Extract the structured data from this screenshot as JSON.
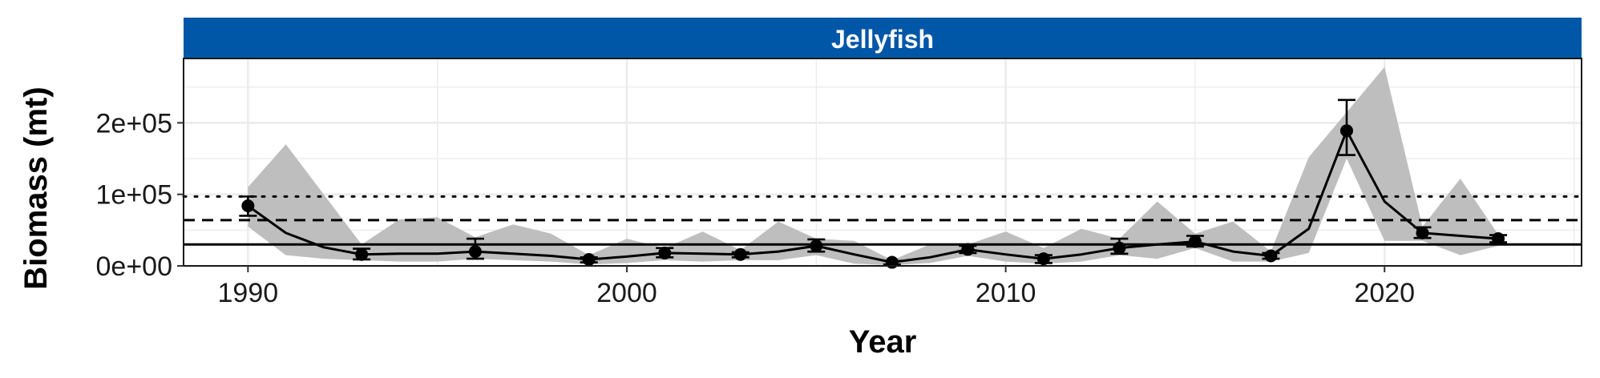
{
  "chart_data": {
    "type": "line",
    "panel_title": "Jellyfish",
    "xlabel": "Year",
    "ylabel": "Biomass (mt)",
    "xlim": [
      1988.3,
      2025.2
    ],
    "ylim": [
      0,
      290000
    ],
    "x_ticks": [
      1990,
      2000,
      2010,
      2020
    ],
    "y_ticks": [
      {
        "value": 0,
        "label": "0e+00"
      },
      {
        "value": 100000,
        "label": "1e+05"
      },
      {
        "value": 200000,
        "label": "2e+05"
      }
    ],
    "grid": true,
    "colors": {
      "strip": "#0057A8",
      "ribbon": "#BEBEBE",
      "line": "#000000",
      "grid": "#EBEBEB"
    },
    "reference_lines": [
      {
        "style": "dotted",
        "y": 97000
      },
      {
        "style": "dashed",
        "y": 64000
      },
      {
        "style": "solid",
        "y": 30000
      }
    ],
    "ribbon": [
      {
        "x": 1990,
        "lo": 55000,
        "hi": 110000
      },
      {
        "x": 1991,
        "lo": 15000,
        "hi": 170000
      },
      {
        "x": 1992,
        "lo": 10000,
        "hi": 100000
      },
      {
        "x": 1993,
        "lo": 8000,
        "hi": 30000
      },
      {
        "x": 1994,
        "lo": 6000,
        "hi": 65000
      },
      {
        "x": 1995,
        "lo": 6000,
        "hi": 68000
      },
      {
        "x": 1996,
        "lo": 10000,
        "hi": 40000
      },
      {
        "x": 1997,
        "lo": 8000,
        "hi": 58000
      },
      {
        "x": 1998,
        "lo": 6000,
        "hi": 45000
      },
      {
        "x": 1999,
        "lo": 2000,
        "hi": 15000
      },
      {
        "x": 2000,
        "lo": 4000,
        "hi": 38000
      },
      {
        "x": 2001,
        "lo": 8000,
        "hi": 25000
      },
      {
        "x": 2002,
        "lo": 6000,
        "hi": 48000
      },
      {
        "x": 2003,
        "lo": 8000,
        "hi": 22000
      },
      {
        "x": 2004,
        "lo": 8000,
        "hi": 62000
      },
      {
        "x": 2005,
        "lo": 15000,
        "hi": 38000
      },
      {
        "x": 2006,
        "lo": 3000,
        "hi": 35000
      },
      {
        "x": 2007,
        "lo": 1000,
        "hi": 8000
      },
      {
        "x": 2008,
        "lo": 4000,
        "hi": 30000
      },
      {
        "x": 2009,
        "lo": 14000,
        "hi": 30000
      },
      {
        "x": 2010,
        "lo": 6000,
        "hi": 48000
      },
      {
        "x": 2011,
        "lo": 3000,
        "hi": 25000
      },
      {
        "x": 2012,
        "lo": 6000,
        "hi": 52000
      },
      {
        "x": 2013,
        "lo": 15000,
        "hi": 38000
      },
      {
        "x": 2014,
        "lo": 10000,
        "hi": 90000
      },
      {
        "x": 2015,
        "lo": 25000,
        "hi": 45000
      },
      {
        "x": 2016,
        "lo": 6000,
        "hi": 62000
      },
      {
        "x": 2017,
        "lo": 6000,
        "hi": 20000
      },
      {
        "x": 2018,
        "lo": 18000,
        "hi": 152000
      },
      {
        "x": 2019,
        "lo": 150000,
        "hi": 215000
      },
      {
        "x": 2020,
        "lo": 35000,
        "hi": 278000
      },
      {
        "x": 2021,
        "lo": 35000,
        "hi": 55000
      },
      {
        "x": 2022,
        "lo": 15000,
        "hi": 122000
      },
      {
        "x": 2023,
        "lo": 28000,
        "hi": 44000
      }
    ],
    "series": [
      {
        "x": [
          1990,
          1991,
          1992,
          1993,
          1994,
          1995,
          1996,
          1997,
          1998,
          1999,
          2000,
          2001,
          2002,
          2003,
          2004,
          2005,
          2006,
          2007,
          2008,
          2009,
          2010,
          2011,
          2012,
          2013,
          2014,
          2015,
          2016,
          2017,
          2018,
          2019,
          2020,
          2021,
          2022,
          2023
        ],
        "values": [
          84000,
          46000,
          26000,
          16000,
          17000,
          17000,
          20000,
          17000,
          14000,
          9000,
          13000,
          18000,
          17000,
          16000,
          20000,
          28000,
          16000,
          5000,
          12000,
          23000,
          16000,
          10000,
          16000,
          25000,
          30000,
          34000,
          20000,
          14000,
          52000,
          189000,
          90000,
          46000,
          42000,
          38000
        ]
      }
    ],
    "survey_points": [
      {
        "x": 1990,
        "y": 84000,
        "lo": 70000,
        "hi": 97000
      },
      {
        "x": 1993,
        "y": 16000,
        "lo": 9000,
        "hi": 24000
      },
      {
        "x": 1996,
        "y": 20000,
        "lo": 10000,
        "hi": 38000
      },
      {
        "x": 1999,
        "y": 9000,
        "lo": 5000,
        "hi": 12000
      },
      {
        "x": 2001,
        "y": 18000,
        "lo": 12000,
        "hi": 25000
      },
      {
        "x": 2003,
        "y": 16000,
        "lo": 12000,
        "hi": 19000
      },
      {
        "x": 2005,
        "y": 28000,
        "lo": 20000,
        "hi": 37000
      },
      {
        "x": 2007,
        "y": 5000,
        "lo": 2000,
        "hi": 7000
      },
      {
        "x": 2009,
        "y": 23000,
        "lo": 18000,
        "hi": 28000
      },
      {
        "x": 2011,
        "y": 10000,
        "lo": 4000,
        "hi": 15000
      },
      {
        "x": 2013,
        "y": 25000,
        "lo": 17000,
        "hi": 38000
      },
      {
        "x": 2015,
        "y": 34000,
        "lo": 27000,
        "hi": 42000
      },
      {
        "x": 2017,
        "y": 14000,
        "lo": 10000,
        "hi": 18000
      },
      {
        "x": 2019,
        "y": 189000,
        "lo": 155000,
        "hi": 232000
      },
      {
        "x": 2021,
        "y": 46000,
        "lo": 39000,
        "hi": 54000
      },
      {
        "x": 2023,
        "y": 38000,
        "lo": 33000,
        "hi": 43000
      }
    ]
  }
}
